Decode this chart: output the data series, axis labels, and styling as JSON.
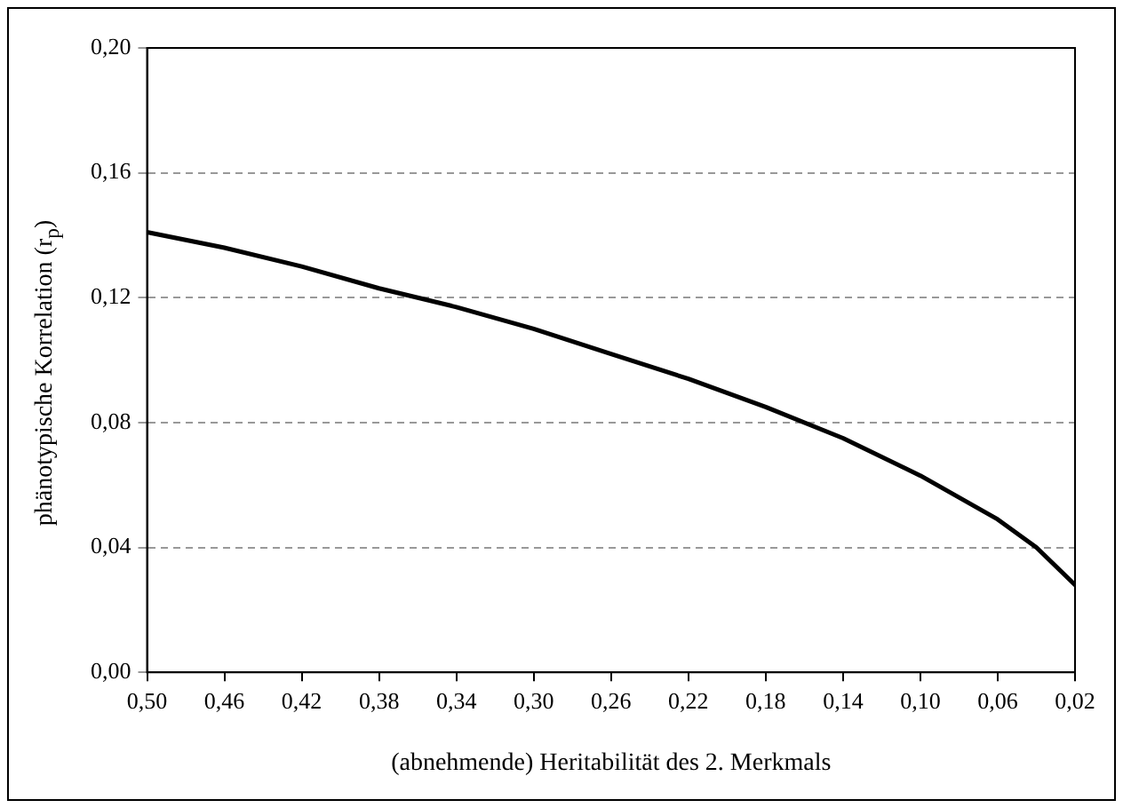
{
  "chart_data": {
    "type": "line",
    "xlabel": "(abnehmende) Heritabilität des 2. Merkmals",
    "ylabel": "phänotypische Korrelation (r$_{p}$)",
    "x": [
      0.5,
      0.46,
      0.42,
      0.38,
      0.34,
      0.3,
      0.26,
      0.22,
      0.18,
      0.14,
      0.1,
      0.06,
      0.04,
      0.02
    ],
    "series": [
      {
        "color": "#000000",
        "values": [
          0.141,
          0.136,
          0.13,
          0.123,
          0.117,
          0.11,
          0.102,
          0.094,
          0.085,
          0.075,
          0.063,
          0.049,
          0.04,
          0.028
        ]
      }
    ],
    "xlim": [
      0.5,
      0.02
    ],
    "xticks": [
      {
        "value": 0.5,
        "label": "0,50"
      },
      {
        "value": 0.46,
        "label": "0,46"
      },
      {
        "value": 0.42,
        "label": "0,42"
      },
      {
        "value": 0.38,
        "label": "0,38"
      },
      {
        "value": 0.34,
        "label": "0,34"
      },
      {
        "value": 0.3,
        "label": "0,30"
      },
      {
        "value": 0.26,
        "label": "0,26"
      },
      {
        "value": 0.22,
        "label": "0,22"
      },
      {
        "value": 0.18,
        "label": "0,18"
      },
      {
        "value": 0.14,
        "label": "0,14"
      },
      {
        "value": 0.1,
        "label": "0,10"
      },
      {
        "value": 0.06,
        "label": "0,06"
      },
      {
        "value": 0.02,
        "label": "0,02"
      }
    ],
    "ylim": [
      0,
      0.2
    ],
    "yticks": [
      {
        "value": 0,
        "label": "0,00"
      },
      {
        "value": 0.04,
        "label": "0,04"
      },
      {
        "value": 0.08,
        "label": "0,08"
      },
      {
        "value": 0.12,
        "label": "0,12"
      },
      {
        "value": 0.16,
        "label": "0,16"
      },
      {
        "value": 0.2,
        "label": "0,20"
      }
    ],
    "grid": "y",
    "legend": false,
    "marker": "none",
    "line_style": "solid"
  }
}
